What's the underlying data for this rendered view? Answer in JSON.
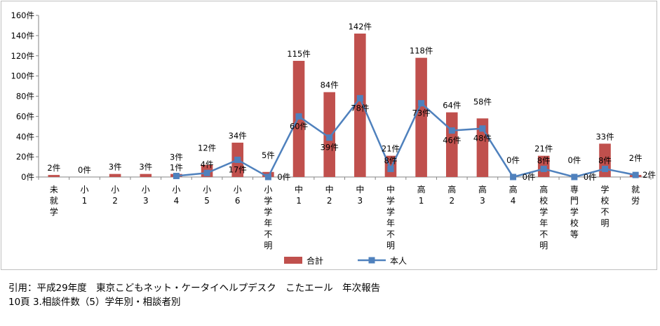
{
  "chart_data": {
    "type": "bar",
    "categories": [
      [
        "未",
        "就",
        "学"
      ],
      [
        "小",
        "1"
      ],
      [
        "小",
        "2"
      ],
      [
        "小",
        "3"
      ],
      [
        "小",
        "4"
      ],
      [
        "小",
        "5"
      ],
      [
        "小",
        "6"
      ],
      [
        "小",
        "学",
        "学",
        "年",
        "不",
        "明"
      ],
      [
        "中",
        "1"
      ],
      [
        "中",
        "2"
      ],
      [
        "中",
        "3"
      ],
      [
        "中",
        "学",
        "学",
        "年",
        "不",
        "明"
      ],
      [
        "高",
        "1"
      ],
      [
        "高",
        "2"
      ],
      [
        "高",
        "3"
      ],
      [
        "高",
        "4"
      ],
      [
        "高",
        "校",
        "学",
        "年",
        "不",
        "明"
      ],
      [
        "専",
        "門",
        "学",
        "校",
        "等"
      ],
      [
        "学",
        "校",
        "不",
        "明"
      ],
      [
        "就",
        "労"
      ]
    ],
    "series": [
      {
        "name": "合計",
        "kind": "bar",
        "color": "#c0504d",
        "values": [
          2,
          0,
          3,
          3,
          3,
          12,
          34,
          5,
          115,
          84,
          142,
          21,
          118,
          64,
          58,
          0,
          21,
          0,
          33,
          2
        ],
        "labels": [
          "2件",
          "0件",
          "3件",
          "3件",
          "3件",
          "12件",
          "34件",
          "5件",
          "115件",
          "84件",
          "142件",
          "21件",
          "118件",
          "64件",
          "58件",
          "0件",
          "21件",
          "0件",
          "33件",
          "2件"
        ]
      },
      {
        "name": "本人",
        "kind": "line",
        "color": "#4f81bd",
        "values": [
          null,
          null,
          null,
          null,
          1,
          4,
          17,
          0,
          60,
          39,
          78,
          8,
          73,
          46,
          48,
          0,
          8,
          0,
          8,
          2
        ],
        "labels": [
          "",
          "",
          "",
          "",
          "1件",
          "4件",
          "17件",
          "0件",
          "60件",
          "39件",
          "78件",
          "8件",
          "73件",
          "46件",
          "48件",
          "0件",
          "8件",
          "0件",
          "8件",
          "2件"
        ]
      }
    ],
    "y_ticks": [
      "0件",
      "20件",
      "40件",
      "60件",
      "80件",
      "100件",
      "120件",
      "140件",
      "160件"
    ],
    "ylim": [
      0,
      160
    ],
    "legend_position": "bottom",
    "grid": false
  },
  "caption": {
    "line1": "引用：平成29年度　東京こどもネット・ケータイヘルプデスク　こたエール　年次報告",
    "line2": "10頁  3.相談件数（5）学年別・相談者別"
  }
}
